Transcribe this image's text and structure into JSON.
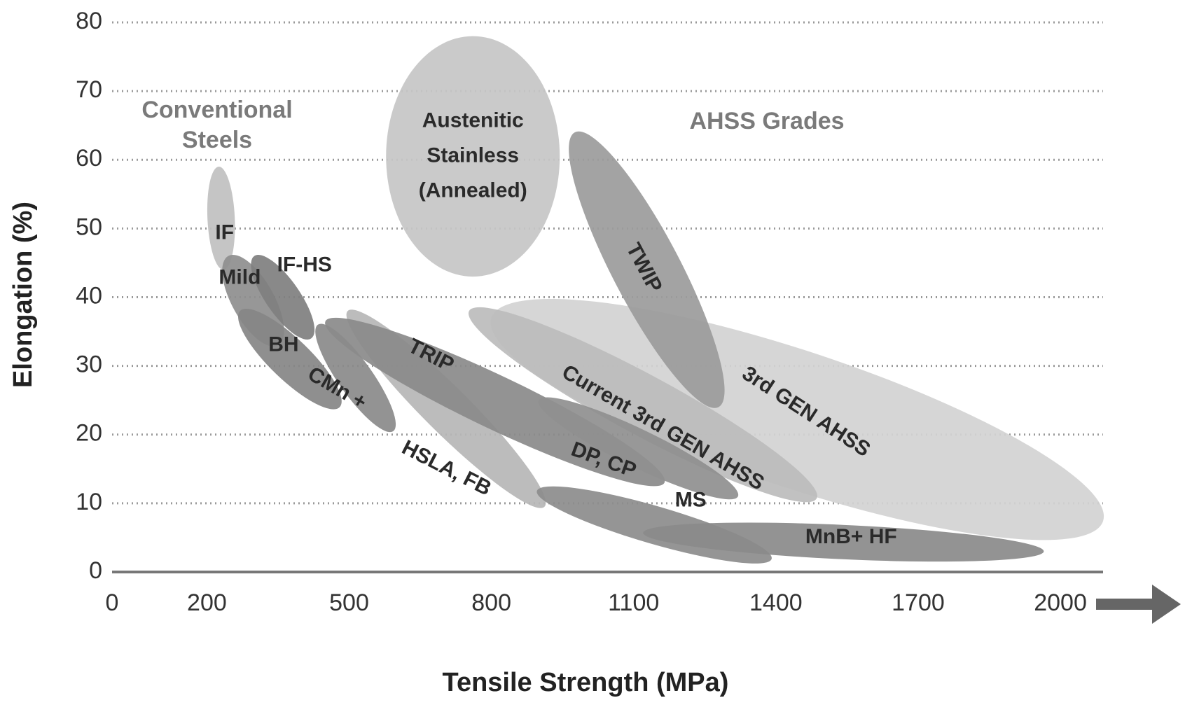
{
  "chart_data": {
    "type": "region",
    "xlabel": "Tensile Strength (MPa)",
    "ylabel": "Elongation (%)",
    "xlim": [
      0,
      2090
    ],
    "ylim": [
      0,
      80
    ],
    "xticks": [
      0,
      200,
      500,
      800,
      1100,
      1400,
      1700,
      2000
    ],
    "yticks": [
      0,
      10,
      20,
      30,
      40,
      50,
      60,
      70,
      80
    ],
    "grid": true,
    "annotations": [
      [
        "Conventional",
        "Steels"
      ],
      [
        "AHSS Grades"
      ]
    ],
    "regions": [
      {
        "label": [
          "3rd GEN AHSS"
        ],
        "x": [
          800,
          2090
        ],
        "y": [
          37,
          7.4
        ],
        "color": "#d2d2d2"
      },
      {
        "label": [
          "Current 3rd GEN AHSS"
        ],
        "x": [
          753,
          1486
        ],
        "y": [
          38,
          10.7
        ],
        "color": "#bcbcbc"
      },
      {
        "label": [
          "Austenitic",
          "Stainless",
          "(Annealed)"
        ],
        "x": [
          761,
          761
        ],
        "y": [
          78,
          43
        ],
        "color": "#c6c6c6"
      },
      {
        "label": [
          "TWIP"
        ],
        "x": [
          976,
          1279
        ],
        "y": [
          64,
          24
        ],
        "color": "#9b9b9b"
      },
      {
        "label": [
          "HSLA, FB"
        ],
        "x": [
          497,
          912
        ],
        "y": [
          38,
          9.5
        ],
        "color": "#b6b6b6"
      },
      {
        "label": [
          "TRIP"
        ],
        "x": [
          450,
          1165
        ],
        "y": [
          36.5,
          13
        ],
        "color": "#8a8a8a"
      },
      {
        "label": [
          "DP, CP"
        ],
        "x": [
          900,
          1320
        ],
        "y": [
          25,
          11
        ],
        "color": "#8f8f8f"
      },
      {
        "label": [
          "MS"
        ],
        "x": [
          896,
          1391
        ],
        "y": [
          11.8,
          1.9
        ],
        "color": "#8c8c8c"
      },
      {
        "label": [
          "MnB+ HF"
        ],
        "x": [
          1120,
          1965
        ],
        "y": [
          5.7,
          3
        ],
        "color": "#8a8a8a"
      },
      {
        "label": [
          "IF"
        ],
        "x": [
          225,
          235
        ],
        "y": [
          59,
          44
        ],
        "color": "#c0c0c0"
      },
      {
        "label": [
          "Mild"
        ],
        "x": [
          245,
          350
        ],
        "y": [
          46,
          33
        ],
        "color": "#8e8e8e"
      },
      {
        "label": [
          "IF-HS"
        ],
        "x": [
          300,
          420
        ],
        "y": [
          46,
          34
        ],
        "color": "#7f7f7f"
      },
      {
        "label": [
          "BH"
        ],
        "x": [
          270,
          480
        ],
        "y": [
          38,
          24
        ],
        "color": "#868686"
      },
      {
        "label": [
          "CMn +"
        ],
        "x": [
          434,
          593
        ],
        "y": [
          36,
          20.5
        ],
        "color": "#8a8a8a"
      }
    ]
  }
}
